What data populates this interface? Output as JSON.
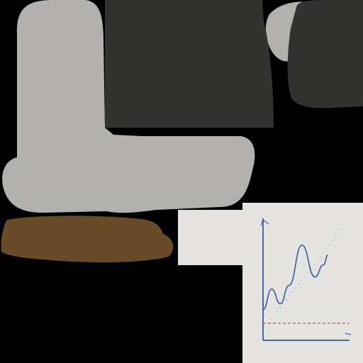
{
  "canvas": {
    "background": "#000000"
  },
  "palette": {
    "light_grey": "#b3b1ae",
    "dark_grey": "#323331",
    "brown": "#694b2a",
    "panel": "#e6e4e0",
    "curve": "#4a67a8",
    "axis": "#4a67a8",
    "baseline": "#b04a8a",
    "trend": "#9aa6c8"
  },
  "graph_sketch": {
    "type": "line",
    "axes_arrows": true,
    "series": [
      {
        "x": [
          0.0,
          0.1,
          0.2,
          0.3,
          0.45,
          0.6,
          0.7,
          0.75
        ],
        "y": [
          0.25,
          0.42,
          0.3,
          0.45,
          0.78,
          0.52,
          0.62,
          0.7
        ]
      }
    ],
    "baseline_y": 0.14,
    "trend_dashed": true
  }
}
